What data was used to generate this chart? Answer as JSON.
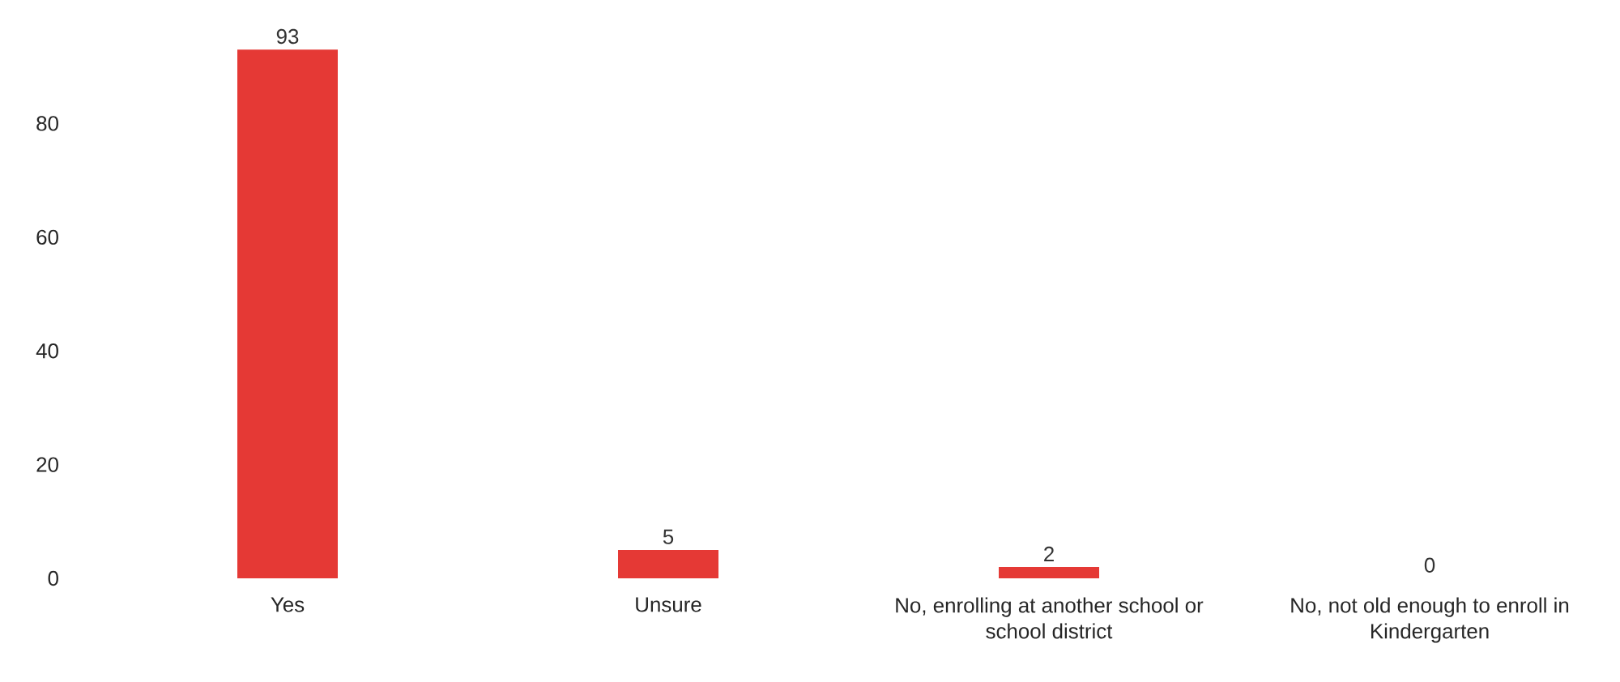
{
  "chart_data": {
    "type": "bar",
    "categories": [
      "Yes",
      "Unsure",
      "No, enrolling at another school or school district",
      "No, not old enough to enroll in Kindergarten"
    ],
    "values": [
      93,
      5,
      2,
      0
    ],
    "color": "#e53935",
    "ylim": [
      0,
      93
    ],
    "yticks": [
      0,
      20,
      40,
      60,
      80
    ],
    "data_labels": true
  }
}
